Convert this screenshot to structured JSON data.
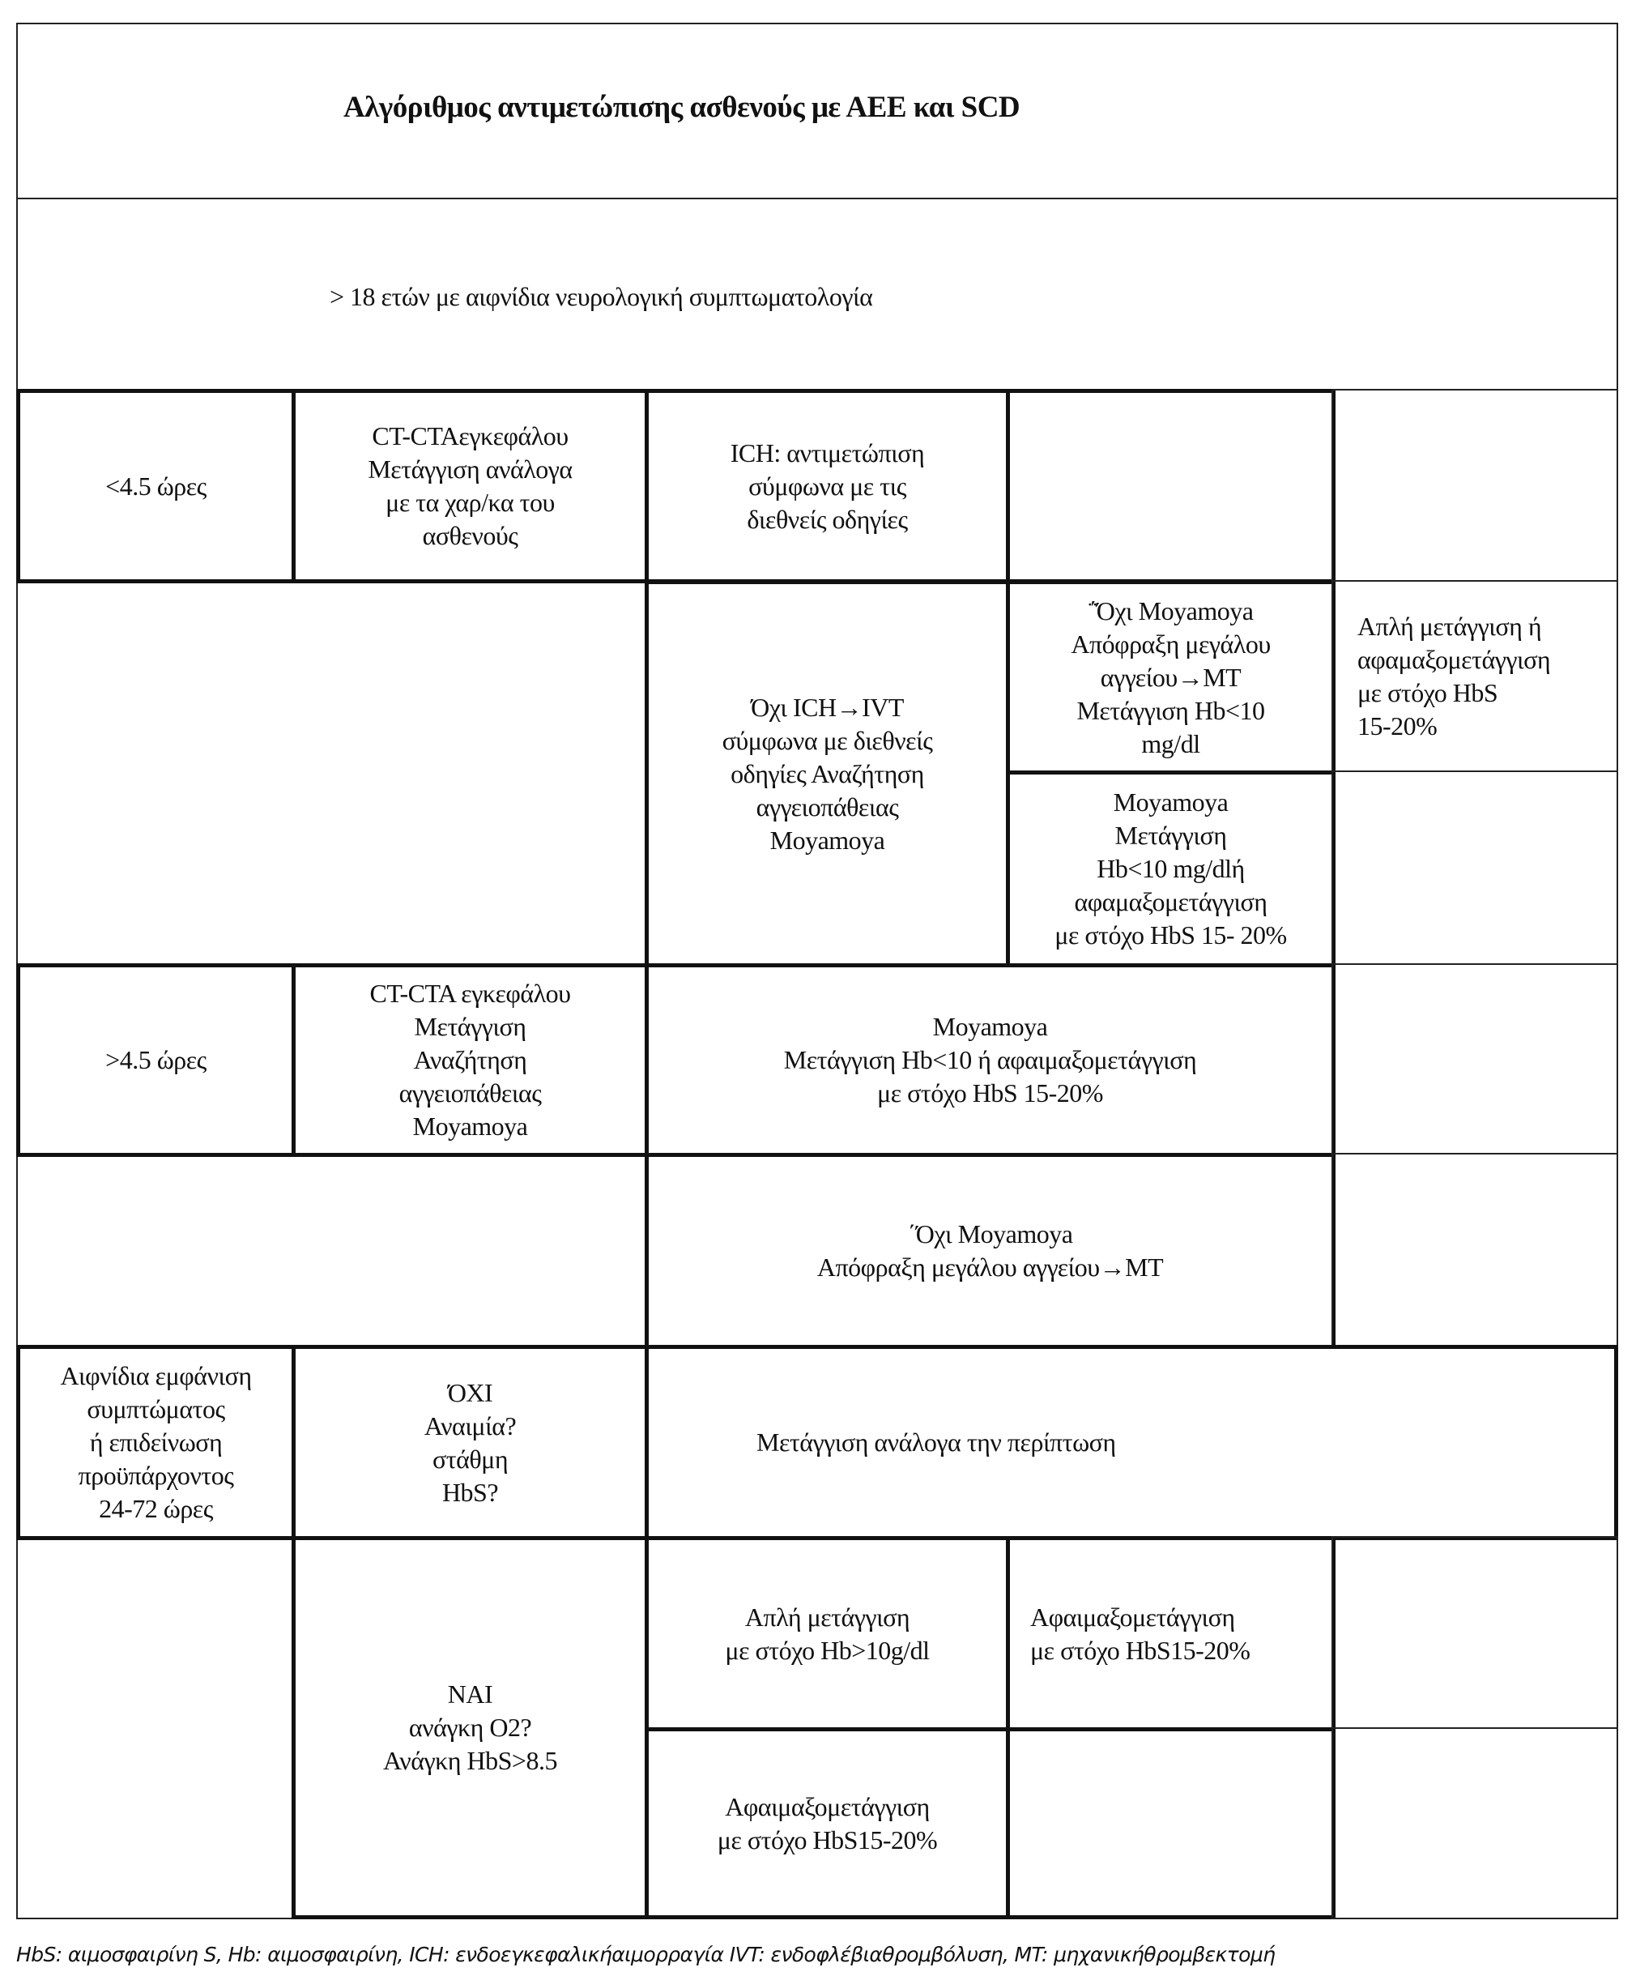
{
  "title": "Αλγόριθμος αντιμετώπισης ασθενούς με ΑΕΕ και SCD",
  "subtitle": "> 18 ετών με αιφνίδια νευρολογική συμπτωματολογία",
  "row_lt45": {
    "time": "<4.5 ώρες",
    "imaging": "CT-CTAεγκεφάλου\nΜετάγγιση ανάλογα\nμε  τα χαρ/κα του\nασθενούς",
    "ich": "ICH: αντιμετώπιση\nσύμφωνα με τις\nδιεθνείς  οδηγίες",
    "no_ich": "Όχι ICH→IVT\nσύμφωνα  με διεθνείς\nοδηγίες  Αναζήτηση\nαγγειοπάθειας\nMoyamoya",
    "no_moyamoya": "΅Όχι Moyamoya\nΑπόφραξη μεγάλου\nαγγείου→MT\nΜετάγγιση Hb<10\nmg/dl",
    "moyamoya": "Moyamoya\nΜετάγγιση\nHb<10  mg/dlή\nαφαμαξομετάγγιση\nμε στόχο HbS 15-  20%",
    "transfusion_target": "Απλή μετάγγιση ή\nαφαμαξομετάγγιση\nμε στόχο HbS\n15-20%"
  },
  "row_gt45": {
    "time": ">4.5 ώρες",
    "imaging": "CT-CTA εγκεφάλου\nΜετάγγιση\nΑναζήτηση\nαγγειοπάθειας\nMoyamoya",
    "moyamoya": "Moyamoya\nΜετάγγιση Hb<10 ή  αφαιμαξομετάγγιση\nμε  στόχο HbS 15-20%",
    "no_moyamoya": "΄Όχι Moyamoya\nΑπόφραξη μεγάλου αγγείου→MT"
  },
  "row_sudden": {
    "time": "Αιφνίδια  εμφάνιση\nσυμπτώματος\nή  επιδείνωση\nπροϋπάρχοντος\n24-72 ώρες",
    "no": "ΌΧΙ\nΑναιμία?\nστάθμη\nHbS?",
    "no_action": "Μετάγγιση ανάλογα  την περίπτωση",
    "yes": "ΝΑΙ\nανάγκη Ο2?\nΑνάγκη HbS>8.5",
    "simple": "Απλή μετάγγιση\nμε στόχο  Hb>10g/dl",
    "exchange_right": "Αφαιμαξομετάγγιση\nμε στόχο HbS15-20%",
    "exchange_bottom": "Αφαιμαξομετάγγιση\nμε  στόχο HbS15-20%"
  },
  "footer": "HbS: αιμοσφαιρίνη S, Hb: αιμοσφαιρίνη, ICH: ενδοεγκεφαλικήαιμορραγία IVT: ενδοφλέβιαθρομβόλυση, MT: μηχανικήθρομβεκτομή"
}
